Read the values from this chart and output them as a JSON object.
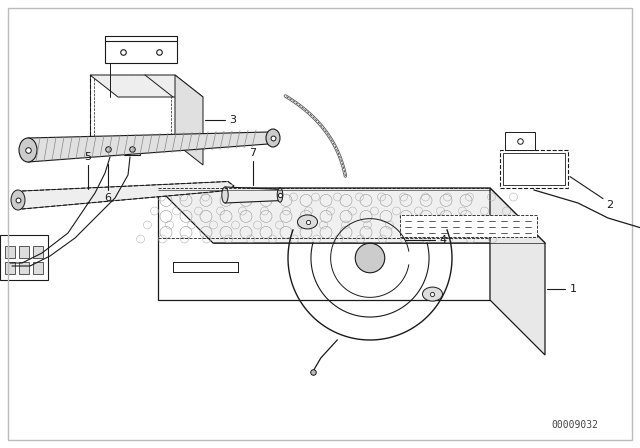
{
  "background_color": "#ffffff",
  "border_color": "#bbbbbb",
  "line_color": "#1a1a1a",
  "fig_width": 6.4,
  "fig_height": 4.48,
  "dpi": 100,
  "watermark": "00009032",
  "watermark_fontsize": 7
}
